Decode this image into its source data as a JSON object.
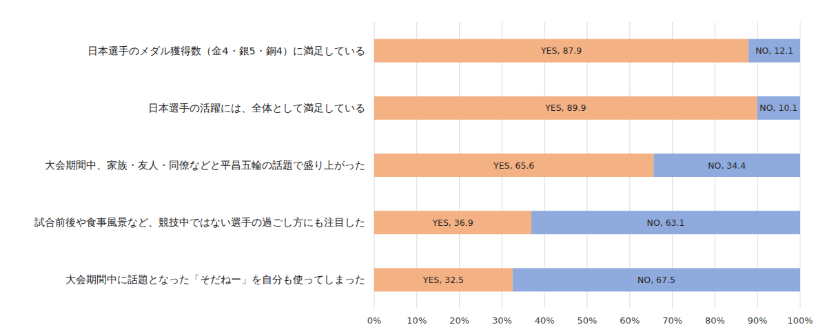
{
  "chart_data": {
    "type": "bar",
    "orientation": "horizontal",
    "stacked": true,
    "grid": true,
    "data_labels": true,
    "categories": [
      "日本選手のメダル獲得数（金4・銀5・銅4）に満足している",
      "日本選手の活躍には、全体として満足している",
      "大会期間中、家族・友人・同僚などと平昌五輪の話題で盛り上がった",
      "試合前後や食事風景など、競技中ではない選手の過ごし方にも注目した",
      "大会期間中に話題となった「そだねー」を自分も使ってしまった"
    ],
    "series": [
      {
        "name": "YES",
        "color": "#f4b183",
        "values": [
          87.9,
          89.9,
          65.6,
          36.9,
          32.5
        ],
        "value_labels": [
          "YES, 87.9",
          "YES, 89.9",
          "YES, 65.6",
          "YES, 36.9",
          "YES, 32.5"
        ]
      },
      {
        "name": "NO",
        "color": "#8faadc",
        "values": [
          12.1,
          10.1,
          34.4,
          63.1,
          67.5
        ],
        "value_labels": [
          "NO, 12.1",
          "NO, 10.1",
          "NO, 34.4",
          "NO, 63.1",
          "NO, 67.5"
        ]
      }
    ],
    "xlim": [
      0,
      100
    ],
    "xticks": [
      {
        "value": 0,
        "label": "0%"
      },
      {
        "value": 10,
        "label": "10%"
      },
      {
        "value": 20,
        "label": "20%"
      },
      {
        "value": 30,
        "label": "30%"
      },
      {
        "value": 40,
        "label": "40%"
      },
      {
        "value": 50,
        "label": "50%"
      },
      {
        "value": 60,
        "label": "60%"
      },
      {
        "value": 70,
        "label": "70%"
      },
      {
        "value": 80,
        "label": "80%"
      },
      {
        "value": 90,
        "label": "90%"
      },
      {
        "value": 100,
        "label": "100%"
      }
    ]
  }
}
